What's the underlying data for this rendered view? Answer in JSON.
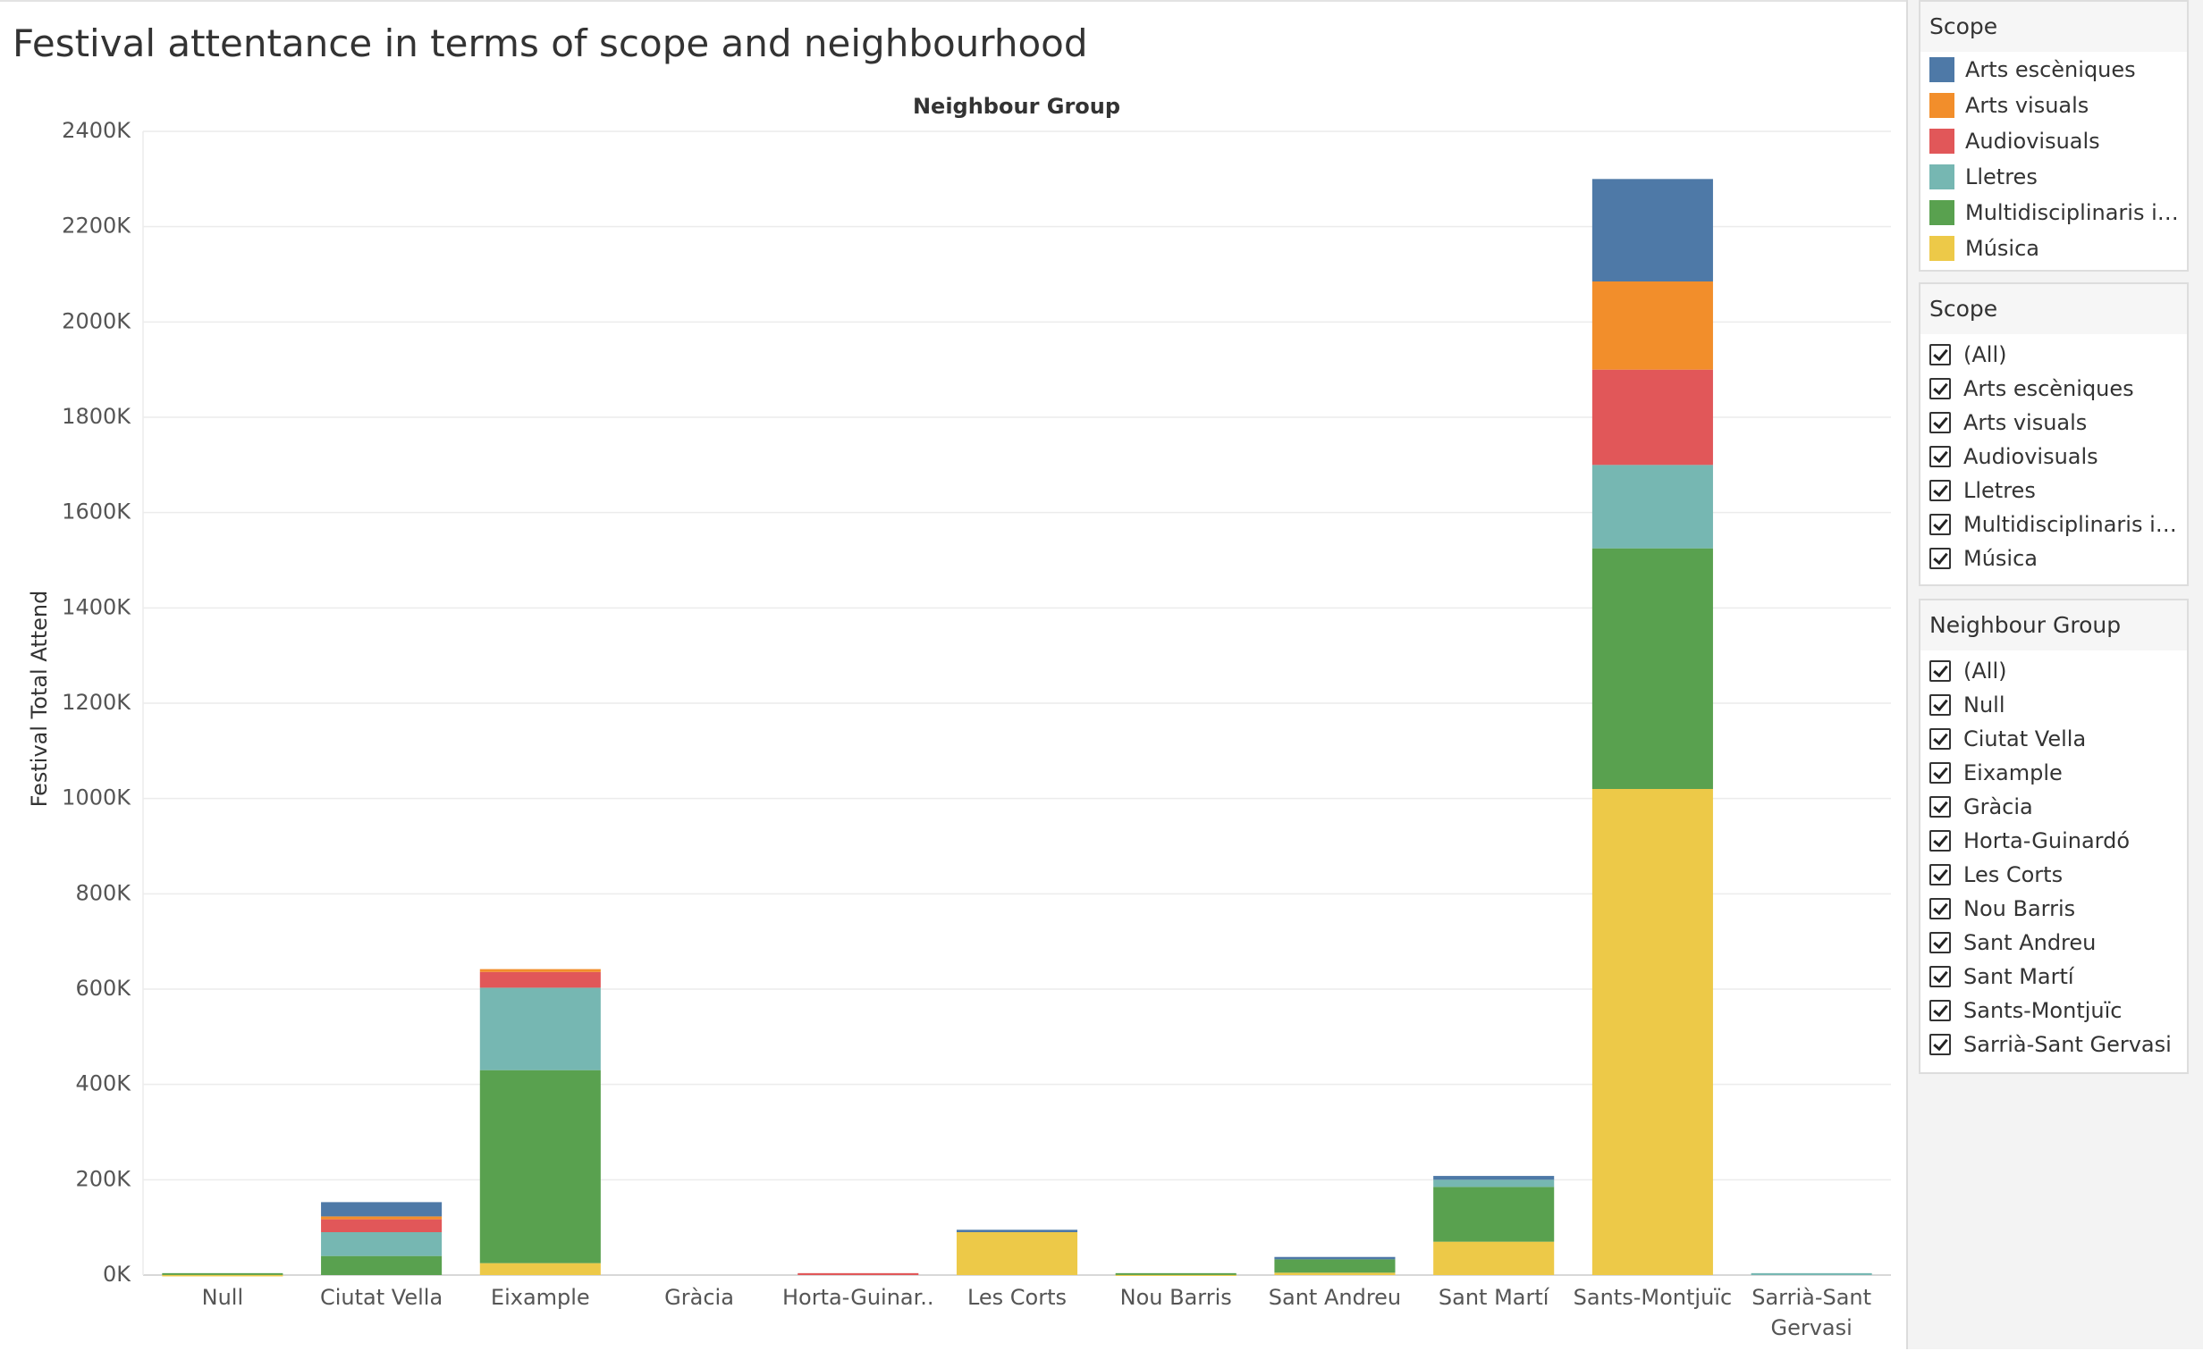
{
  "title": "Festival attentance in terms of scope and neighbourhood",
  "colors": {
    "Arts escèniques": "#4e79a7",
    "Arts visuals": "#f28e2b",
    "Audiovisuals": "#e15759",
    "Lletres": "#76b7b2",
    "Multidisciplinaris i altres": "#59a14f",
    "Música": "#edc948"
  },
  "chart_data": {
    "type": "bar",
    "stacked": true,
    "title": "Festival attentance in terms of scope and neighbourhood",
    "xlabel": "Neighbour Group",
    "ylabel": "Festival Total Attend",
    "ylim": [
      0,
      2400000
    ],
    "yticks": [
      0,
      200000,
      400000,
      600000,
      800000,
      1000000,
      1200000,
      1400000,
      1600000,
      1800000,
      2000000,
      2200000,
      2400000
    ],
    "ytick_labels": [
      "0K",
      "200K",
      "400K",
      "600K",
      "800K",
      "1000K",
      "1200K",
      "1400K",
      "1600K",
      "1800K",
      "2000K",
      "2200K",
      "2400K"
    ],
    "grid": true,
    "categories": [
      "Null",
      "Ciutat Vella",
      "Eixample",
      "Gràcia",
      "Horta-Guinar..",
      "Les Corts",
      "Nou Barris",
      "Sant Andreu",
      "Sant Martí",
      "Sants-Montjuïc",
      "Sarrià-Sant Gervasi"
    ],
    "series": [
      {
        "name": "Música",
        "values": [
          1000,
          0,
          25000,
          0,
          0,
          90000,
          2000,
          5000,
          70000,
          1020000,
          0
        ]
      },
      {
        "name": "Multidisciplinaris i altres",
        "values": [
          3000,
          40000,
          405000,
          0,
          0,
          0,
          2000,
          28000,
          115000,
          505000,
          0
        ]
      },
      {
        "name": "Lletres",
        "values": [
          0,
          50000,
          173000,
          0,
          0,
          0,
          0,
          0,
          15000,
          175000,
          4000
        ]
      },
      {
        "name": "Audiovisuals",
        "values": [
          0,
          27000,
          33000,
          0,
          4000,
          0,
          0,
          0,
          0,
          200000,
          0
        ]
      },
      {
        "name": "Arts visuals",
        "values": [
          0,
          6000,
          6000,
          0,
          0,
          0,
          0,
          0,
          0,
          185000,
          0
        ]
      },
      {
        "name": "Arts escèniques",
        "values": [
          0,
          30000,
          0,
          0,
          0,
          5000,
          0,
          5000,
          8000,
          215000,
          0
        ]
      }
    ],
    "legend": "right"
  },
  "legend": {
    "title": "Scope",
    "items": [
      {
        "label": "Arts escèniques",
        "color": "#4e79a7"
      },
      {
        "label": "Arts visuals",
        "color": "#f28e2b"
      },
      {
        "label": "Audiovisuals",
        "color": "#e15759"
      },
      {
        "label": "Lletres",
        "color": "#76b7b2"
      },
      {
        "label": "Multidisciplinaris i al..",
        "color": "#59a14f"
      },
      {
        "label": "Música",
        "color": "#edc948"
      }
    ]
  },
  "scope_filter": {
    "title": "Scope",
    "items": [
      "(All)",
      "Arts escèniques",
      "Arts visuals",
      "Audiovisuals",
      "Lletres",
      "Multidisciplinaris i ...",
      "Música"
    ]
  },
  "neighbour_filter": {
    "title": "Neighbour Group",
    "items": [
      "(All)",
      "Null",
      "Ciutat Vella",
      "Eixample",
      "Gràcia",
      "Horta-Guinardó",
      "Les Corts",
      "Nou Barris",
      "Sant Andreu",
      "Sant Martí",
      "Sants-Montjuïc",
      "Sarrià-Sant Gervasi"
    ]
  }
}
